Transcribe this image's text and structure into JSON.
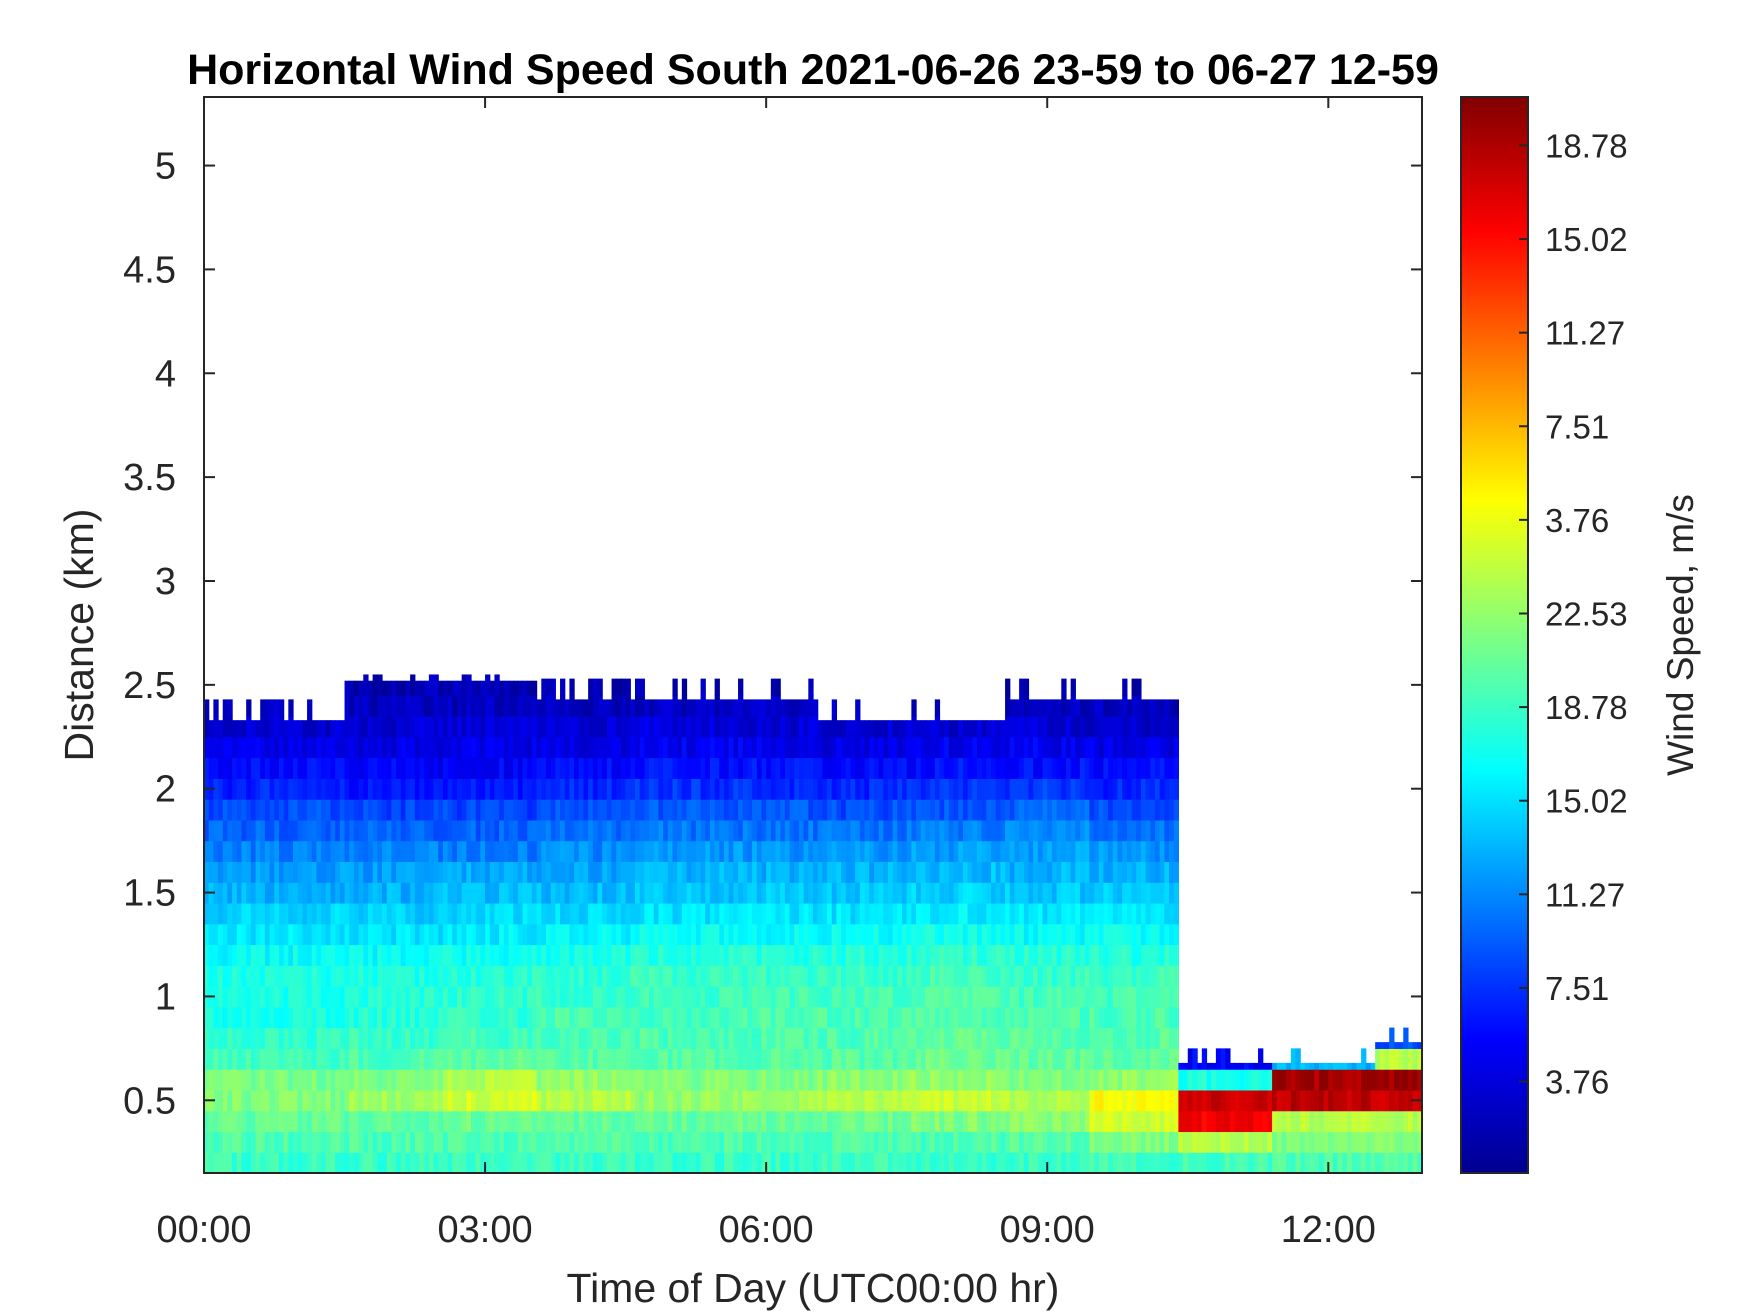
{
  "chart_data": {
    "type": "heatmap",
    "title": "Horizontal Wind Speed South 2021-06-26 23-59 to 06-27 12-59",
    "xlabel": "Time of Day (UTC00:00 hr)",
    "ylabel": "Distance (km)",
    "x_ticks": [
      {
        "label": "00:00",
        "value": 0
      },
      {
        "label": "03:00",
        "value": 3
      },
      {
        "label": "06:00",
        "value": 6
      },
      {
        "label": "09:00",
        "value": 9
      },
      {
        "label": "12:00",
        "value": 12
      }
    ],
    "y_ticks": [
      0.5,
      1,
      1.5,
      2,
      2.5,
      3,
      3.5,
      4,
      4.5,
      5
    ],
    "xlim": [
      0,
      13
    ],
    "ylim": [
      0.15,
      5.33
    ],
    "colorbar": {
      "label": "Wind Speed, m/s",
      "ticks": [
        {
          "label": "18.78",
          "frac": 0.955
        },
        {
          "label": "15.02",
          "frac": 0.868
        },
        {
          "label": "11.27",
          "frac": 0.781
        },
        {
          "label": "7.51",
          "frac": 0.694
        },
        {
          "label": "3.76",
          "frac": 0.607
        },
        {
          "label": "22.53",
          "frac": 0.52
        },
        {
          "label": "18.78",
          "frac": 0.433
        },
        {
          "label": "15.02",
          "frac": 0.346
        },
        {
          "label": "11.27",
          "frac": 0.259
        },
        {
          "label": "7.51",
          "frac": 0.172
        },
        {
          "label": "3.76",
          "frac": 0.085
        }
      ],
      "colormap": "jet"
    },
    "height_bins_km": [
      0.2,
      0.3,
      0.4,
      0.5,
      0.6,
      0.7,
      0.8,
      0.9,
      1.0,
      1.1,
      1.2,
      1.3,
      1.4,
      1.5,
      1.6,
      1.7,
      1.8,
      1.9,
      2.0,
      2.1,
      2.2,
      2.3,
      2.4,
      2.5
    ],
    "time_blocks": [
      {
        "time_hr": 0.5,
        "top_km": 2.33,
        "values": [
          0.43,
          0.45,
          0.47,
          0.5,
          0.49,
          0.44,
          0.42,
          0.4,
          0.4,
          0.4,
          0.38,
          0.35,
          0.33,
          0.3,
          0.28,
          0.25,
          0.22,
          0.2,
          0.16,
          0.13,
          0.1,
          0.08,
          0.06,
          0.05
        ]
      },
      {
        "time_hr": 1.5,
        "top_km": 2.52,
        "values": [
          0.43,
          0.45,
          0.47,
          0.53,
          0.5,
          0.45,
          0.43,
          0.41,
          0.41,
          0.4,
          0.38,
          0.35,
          0.33,
          0.3,
          0.28,
          0.25,
          0.22,
          0.19,
          0.15,
          0.12,
          0.1,
          0.08,
          0.06,
          0.05
        ]
      },
      {
        "time_hr": 2.5,
        "top_km": 2.52,
        "values": [
          0.43,
          0.45,
          0.48,
          0.58,
          0.55,
          0.47,
          0.44,
          0.42,
          0.42,
          0.41,
          0.39,
          0.36,
          0.34,
          0.31,
          0.29,
          0.25,
          0.22,
          0.19,
          0.15,
          0.12,
          0.1,
          0.08,
          0.06,
          0.05
        ]
      },
      {
        "time_hr": 3.5,
        "top_km": 2.43,
        "values": [
          0.43,
          0.45,
          0.47,
          0.55,
          0.52,
          0.46,
          0.45,
          0.45,
          0.43,
          0.42,
          0.4,
          0.37,
          0.34,
          0.31,
          0.29,
          0.26,
          0.23,
          0.2,
          0.16,
          0.13,
          0.1,
          0.08,
          0.06,
          0.05
        ]
      },
      {
        "time_hr": 4.5,
        "top_km": 2.43,
        "values": [
          0.43,
          0.45,
          0.47,
          0.52,
          0.5,
          0.46,
          0.45,
          0.44,
          0.44,
          0.43,
          0.41,
          0.38,
          0.35,
          0.32,
          0.3,
          0.27,
          0.24,
          0.21,
          0.17,
          0.14,
          0.11,
          0.09,
          0.07,
          0.05
        ]
      },
      {
        "time_hr": 5.5,
        "top_km": 2.43,
        "values": [
          0.43,
          0.45,
          0.48,
          0.53,
          0.5,
          0.46,
          0.45,
          0.45,
          0.44,
          0.43,
          0.41,
          0.38,
          0.35,
          0.32,
          0.3,
          0.27,
          0.24,
          0.21,
          0.17,
          0.14,
          0.11,
          0.09,
          0.07,
          0.05
        ]
      },
      {
        "time_hr": 6.5,
        "top_km": 2.33,
        "values": [
          0.43,
          0.45,
          0.48,
          0.55,
          0.51,
          0.46,
          0.45,
          0.45,
          0.44,
          0.43,
          0.41,
          0.38,
          0.35,
          0.32,
          0.3,
          0.27,
          0.24,
          0.2,
          0.16,
          0.13,
          0.1,
          0.08,
          0.06,
          0.05
        ]
      },
      {
        "time_hr": 7.5,
        "top_km": 2.33,
        "values": [
          0.43,
          0.45,
          0.5,
          0.57,
          0.52,
          0.48,
          0.47,
          0.46,
          0.45,
          0.44,
          0.42,
          0.39,
          0.36,
          0.33,
          0.31,
          0.28,
          0.25,
          0.21,
          0.17,
          0.14,
          0.11,
          0.08,
          0.06,
          0.05
        ]
      },
      {
        "time_hr": 8.5,
        "top_km": 2.43,
        "values": [
          0.43,
          0.46,
          0.51,
          0.55,
          0.5,
          0.47,
          0.46,
          0.45,
          0.44,
          0.43,
          0.41,
          0.38,
          0.35,
          0.32,
          0.3,
          0.28,
          0.26,
          0.22,
          0.18,
          0.14,
          0.11,
          0.08,
          0.06,
          0.05
        ]
      },
      {
        "time_hr": 9.4,
        "top_km": 2.43,
        "values": [
          0.44,
          0.5,
          0.58,
          0.62,
          0.52,
          0.47,
          0.46,
          0.45,
          0.44,
          0.43,
          0.41,
          0.38,
          0.35,
          0.32,
          0.3,
          0.27,
          0.24,
          0.2,
          0.16,
          0.13,
          0.1,
          0.08,
          0.06,
          0.05
        ]
      },
      {
        "time_hr": 10.4,
        "top_km": 0.68,
        "values": [
          0.44,
          0.55,
          0.88,
          0.92,
          0.4,
          0.12
        ]
      },
      {
        "time_hr": 11.4,
        "top_km": 0.68,
        "values": [
          0.45,
          0.5,
          0.55,
          0.94,
          0.96,
          0.3
        ]
      },
      {
        "time_hr": 12.5,
        "top_km": 0.78,
        "values": [
          0.45,
          0.5,
          0.55,
          0.93,
          0.97,
          0.55,
          0.2
        ]
      }
    ]
  }
}
